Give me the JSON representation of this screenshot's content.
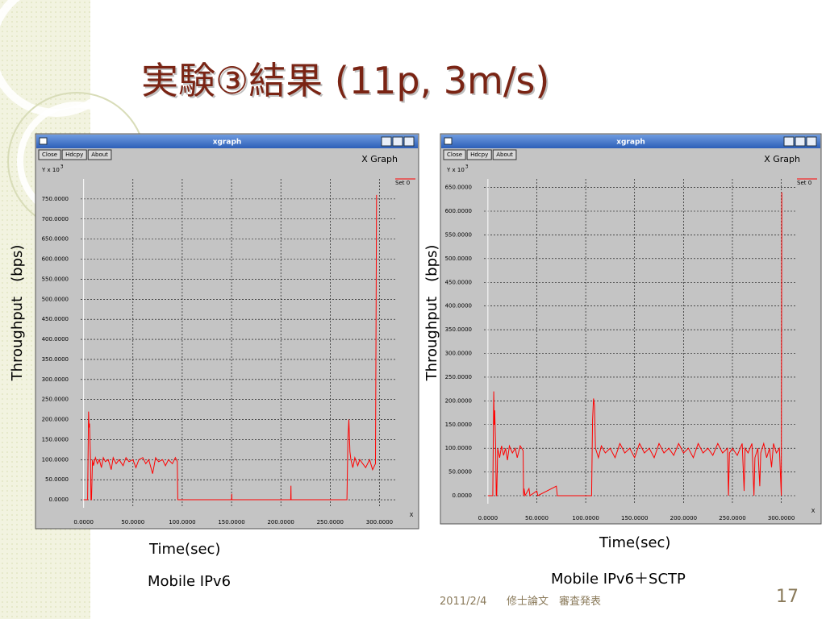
{
  "slide": {
    "title": "実験③結果 (11p, 3m/s)",
    "date": "2011/2/4",
    "footer": "修士論文　審査発表",
    "page": "17"
  },
  "chart_data": [
    {
      "type": "line",
      "window_title": "xgraph",
      "buttons": [
        "Close",
        "Hdcpy",
        "About"
      ],
      "title": "X Graph",
      "y_scale_label": "Y x 10",
      "y_scale_exponent": "3",
      "x_axis_name": "X",
      "y_label": "Throughput　(bps)",
      "x_label": "Time(sec)",
      "caption": "Mobile IPv6",
      "grid": true,
      "xlim": [
        -3,
        316
      ],
      "ylim": [
        -20,
        800
      ],
      "xticks": [
        {
          "value": 0,
          "label": "0.0000"
        },
        {
          "value": 50,
          "label": "50.0000"
        },
        {
          "value": 100,
          "label": "100.0000"
        },
        {
          "value": 150,
          "label": "150.0000"
        },
        {
          "value": 200,
          "label": "200.0000"
        },
        {
          "value": 250,
          "label": "250.0000"
        },
        {
          "value": 300,
          "label": "300.0000"
        }
      ],
      "yticks": [
        {
          "value": 0,
          "label": "0.0000"
        },
        {
          "value": 50,
          "label": "50.0000"
        },
        {
          "value": 100,
          "label": "100.0000"
        },
        {
          "value": 150,
          "label": "150.0000"
        },
        {
          "value": 200,
          "label": "200.0000"
        },
        {
          "value": 250,
          "label": "250.0000"
        },
        {
          "value": 300,
          "label": "300.0000"
        },
        {
          "value": 350,
          "label": "350.0000"
        },
        {
          "value": 400,
          "label": "400.0000"
        },
        {
          "value": 450,
          "label": "450.0000"
        },
        {
          "value": 500,
          "label": "500.0000"
        },
        {
          "value": 550,
          "label": "550.0000"
        },
        {
          "value": 600,
          "label": "600.0000"
        },
        {
          "value": 650,
          "label": "650.0000"
        },
        {
          "value": 700,
          "label": "700.0000"
        },
        {
          "value": 750,
          "label": "750.0000"
        }
      ],
      "series": [
        {
          "name": "Set 0",
          "color": "#ff0000",
          "x": [
            0,
            4,
            5,
            5.5,
            6,
            7,
            7.5,
            8,
            9,
            10,
            12,
            14,
            16,
            18,
            20,
            22,
            25,
            28,
            30,
            33,
            36,
            40,
            43,
            46,
            50,
            53,
            56,
            60,
            63,
            66,
            70,
            73,
            76,
            80,
            83,
            86,
            90,
            93,
            95,
            95.5,
            150,
            150.2,
            150.4,
            210,
            210.2,
            210.4,
            267,
            268,
            269,
            270,
            271,
            273,
            275,
            278,
            280,
            283,
            286,
            290,
            293,
            296,
            297
          ],
          "values": [
            0,
            0,
            220,
            180,
            190,
            100,
            0,
            0,
            100,
            85,
            105,
            90,
            100,
            80,
            105,
            95,
            100,
            75,
            105,
            90,
            100,
            85,
            105,
            95,
            100,
            80,
            100,
            105,
            90,
            100,
            65,
            105,
            95,
            100,
            85,
            100,
            90,
            105,
            95,
            0,
            0,
            15,
            0,
            0,
            35,
            0,
            0,
            150,
            200,
            120,
            100,
            80,
            105,
            85,
            100,
            90,
            80,
            100,
            75,
            90,
            760
          ]
        }
      ]
    },
    {
      "type": "line",
      "window_title": "xgraph",
      "buttons": [
        "Close",
        "Hdcpy",
        "About"
      ],
      "title": "X Graph",
      "y_scale_label": "Y x 10",
      "y_scale_exponent": "3",
      "x_axis_name": "X",
      "y_label": "Throughput　(bps)",
      "x_label": "Time(sec)",
      "caption": "Mobile IPv6＋SCTP",
      "grid": true,
      "xlim": [
        -4,
        316
      ],
      "ylim": [
        -17,
        668
      ],
      "xticks": [
        {
          "value": 0,
          "label": "0.0000"
        },
        {
          "value": 50,
          "label": "50.0000"
        },
        {
          "value": 100,
          "label": "100.0000"
        },
        {
          "value": 150,
          "label": "150.0000"
        },
        {
          "value": 200,
          "label": "200.0000"
        },
        {
          "value": 250,
          "label": "250.0000"
        },
        {
          "value": 300,
          "label": "300.0000"
        }
      ],
      "yticks": [
        {
          "value": 0,
          "label": "0.0000"
        },
        {
          "value": 50,
          "label": "50.0000"
        },
        {
          "value": 100,
          "label": "100.0000"
        },
        {
          "value": 150,
          "label": "150.0000"
        },
        {
          "value": 200,
          "label": "200.0000"
        },
        {
          "value": 250,
          "label": "250.0000"
        },
        {
          "value": 300,
          "label": "300.0000"
        },
        {
          "value": 350,
          "label": "350.0000"
        },
        {
          "value": 400,
          "label": "400.0000"
        },
        {
          "value": 450,
          "label": "450.0000"
        },
        {
          "value": 500,
          "label": "500.0000"
        },
        {
          "value": 550,
          "label": "550.0000"
        },
        {
          "value": 600,
          "label": "600.0000"
        },
        {
          "value": 650,
          "label": "650.0000"
        }
      ],
      "series": [
        {
          "name": "Set 0",
          "color": "#ff0000",
          "x": [
            0,
            5,
            6,
            6.5,
            7,
            8,
            8.5,
            9,
            10,
            12,
            14,
            16,
            18,
            20,
            22,
            25,
            28,
            30,
            33,
            36,
            36.5,
            37,
            38,
            42,
            43,
            50,
            51,
            70,
            71,
            106,
            107,
            108,
            109,
            110,
            113,
            116,
            120,
            125,
            130,
            135,
            140,
            145,
            150,
            155,
            160,
            165,
            170,
            175,
            180,
            185,
            190,
            195,
            200,
            205,
            210,
            215,
            220,
            225,
            230,
            235,
            240,
            245,
            246,
            247,
            250,
            255,
            260,
            262,
            263,
            266,
            270,
            272,
            273,
            276,
            278,
            279,
            282,
            285,
            288,
            290,
            292,
            295,
            298,
            300,
            300.5
          ],
          "values": [
            0,
            0,
            220,
            150,
            180,
            100,
            0,
            0,
            100,
            80,
            105,
            85,
            100,
            75,
            105,
            90,
            100,
            80,
            105,
            95,
            0,
            15,
            0,
            15,
            0,
            10,
            0,
            20,
            0,
            0,
            160,
            205,
            190,
            100,
            80,
            105,
            90,
            100,
            80,
            110,
            90,
            100,
            80,
            110,
            90,
            100,
            80,
            110,
            90,
            100,
            85,
            110,
            90,
            100,
            80,
            110,
            90,
            100,
            85,
            110,
            90,
            100,
            0,
            90,
            100,
            85,
            110,
            10,
            100,
            90,
            110,
            0,
            80,
            100,
            20,
            90,
            110,
            80,
            100,
            60,
            110,
            90,
            100,
            0,
            640
          ]
        }
      ]
    }
  ]
}
